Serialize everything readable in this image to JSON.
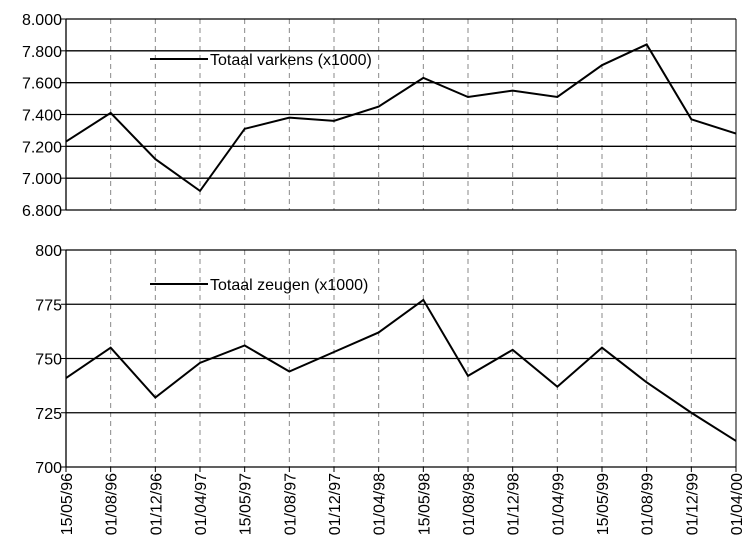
{
  "chart_data": [
    {
      "type": "line",
      "series": [
        {
          "name": "Totaal varkens (x1000)",
          "color": "#000000",
          "values": [
            7230,
            7410,
            7120,
            6920,
            7310,
            7380,
            7360,
            7450,
            7630,
            7510,
            7550,
            7510,
            7710,
            7840,
            7370,
            7280
          ]
        }
      ],
      "ylim": [
        6800,
        8000
      ],
      "yticks": [
        {
          "value": 6800,
          "label": "6.800"
        },
        {
          "value": 7000,
          "label": "7.000"
        },
        {
          "value": 7200,
          "label": "7.200"
        },
        {
          "value": 7400,
          "label": "7.400"
        },
        {
          "value": 7600,
          "label": "7.600"
        },
        {
          "value": 7800,
          "label": "7.800"
        },
        {
          "value": 8000,
          "label": "8.000"
        }
      ],
      "grid": true
    },
    {
      "type": "line",
      "categories": [
        "15/05/96",
        "01/08/96",
        "01/12/96",
        "01/04/97",
        "15/05/97",
        "01/08/97",
        "01/12/97",
        "01/04/98",
        "15/05/98",
        "01/08/98",
        "01/12/98",
        "01/04/99",
        "15/05/99",
        "01/08/99",
        "01/12/99",
        "01/04/00"
      ],
      "series": [
        {
          "name": "Totaal zeugen (x1000)",
          "color": "#000000",
          "values": [
            741,
            755,
            732,
            748,
            756,
            744,
            753,
            762,
            777,
            742,
            754,
            737,
            755,
            739,
            725,
            712
          ]
        }
      ],
      "ylim": [
        700,
        800
      ],
      "yticks": [
        700,
        725,
        750,
        775,
        800
      ],
      "grid": true
    }
  ]
}
